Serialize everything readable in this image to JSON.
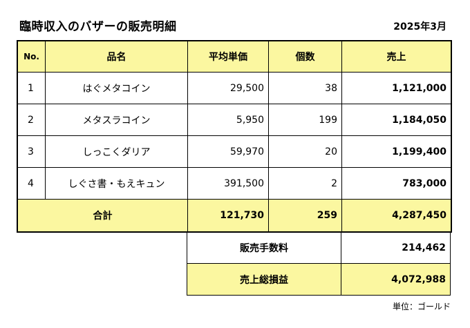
{
  "header": {
    "title": "臨時収入のバザーの販売明細",
    "date": "2025年3月"
  },
  "table": {
    "columns": [
      "No.",
      "品名",
      "平均単価",
      "個数",
      "売上"
    ],
    "rows": [
      {
        "no": "1",
        "name": "はぐメタコイン",
        "price": "29,500",
        "count": "38",
        "sales": "1,121,000"
      },
      {
        "no": "2",
        "name": "メタスラコイン",
        "price": "5,950",
        "count": "199",
        "sales": "1,184,050"
      },
      {
        "no": "3",
        "name": "しっこくダリア",
        "price": "59,970",
        "count": "20",
        "sales": "1,199,400"
      },
      {
        "no": "4",
        "name": "しぐさ書・もえキュン",
        "price": "391,500",
        "count": "2",
        "sales": "783,000"
      }
    ],
    "total": {
      "label": "合計",
      "price": "121,730",
      "count": "259",
      "sales": "4,287,450"
    }
  },
  "summary": {
    "fee_label": "販売手数料",
    "fee_value": "214,462",
    "profit_label": "売上総損益",
    "profit_value": "4,072,988"
  },
  "unit_note": "単位：ゴールド",
  "colors": {
    "highlight": "#fbf7a0"
  }
}
